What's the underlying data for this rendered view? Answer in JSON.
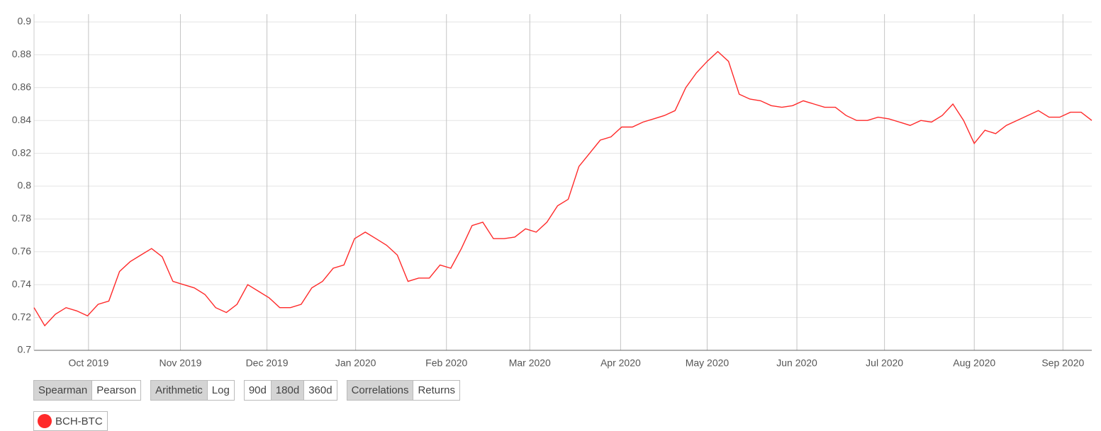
{
  "chart_data": {
    "type": "line",
    "xlim": [
      0,
      99
    ],
    "xticks": [
      {
        "value": 5.1,
        "label": "Oct 2019"
      },
      {
        "value": 13.7,
        "label": "Nov 2019"
      },
      {
        "value": 21.8,
        "label": "Dec 2019"
      },
      {
        "value": 30.1,
        "label": "Jan 2020"
      },
      {
        "value": 38.6,
        "label": "Feb 2020"
      },
      {
        "value": 46.4,
        "label": "Mar 2020"
      },
      {
        "value": 54.9,
        "label": "Apr 2020"
      },
      {
        "value": 63.0,
        "label": "May 2020"
      },
      {
        "value": 71.4,
        "label": "Jun 2020"
      },
      {
        "value": 79.6,
        "label": "Jul 2020"
      },
      {
        "value": 88.0,
        "label": "Aug 2020"
      },
      {
        "value": 96.3,
        "label": "Sep 2020"
      }
    ],
    "ylim": [
      0.7,
      0.9
    ],
    "yticks": [
      0.7,
      0.72,
      0.74,
      0.76,
      0.78,
      0.8,
      0.82,
      0.84,
      0.86,
      0.88,
      0.9
    ],
    "grid": true,
    "series": [
      {
        "name": "BCH-BTC",
        "color": "#ff2a2a",
        "values": [
          0.726,
          0.715,
          0.722,
          0.726,
          0.724,
          0.721,
          0.728,
          0.73,
          0.748,
          0.754,
          0.758,
          0.762,
          0.757,
          0.742,
          0.74,
          0.738,
          0.734,
          0.726,
          0.723,
          0.728,
          0.74,
          0.736,
          0.732,
          0.726,
          0.726,
          0.728,
          0.738,
          0.742,
          0.75,
          0.752,
          0.768,
          0.772,
          0.768,
          0.764,
          0.758,
          0.742,
          0.744,
          0.744,
          0.752,
          0.75,
          0.762,
          0.776,
          0.778,
          0.768,
          0.768,
          0.769,
          0.774,
          0.772,
          0.778,
          0.788,
          0.792,
          0.812,
          0.82,
          0.828,
          0.83,
          0.836,
          0.836,
          0.839,
          0.841,
          0.843,
          0.846,
          0.86,
          0.869,
          0.876,
          0.882,
          0.876,
          0.856,
          0.853,
          0.852,
          0.849,
          0.848,
          0.849,
          0.852,
          0.85,
          0.848,
          0.848,
          0.843,
          0.84,
          0.84,
          0.842,
          0.841,
          0.839,
          0.837,
          0.84,
          0.839,
          0.843,
          0.85,
          0.84,
          0.826,
          0.834,
          0.832,
          0.837,
          0.84,
          0.843,
          0.846,
          0.842,
          0.842,
          0.845,
          0.845,
          0.84
        ]
      }
    ]
  },
  "controls": [
    {
      "options": [
        "Spearman",
        "Pearson"
      ],
      "active": 0
    },
    {
      "options": [
        "Arithmetic",
        "Log"
      ],
      "active": 0
    },
    {
      "options": [
        "90d",
        "180d",
        "360d"
      ],
      "active": 1
    },
    {
      "options": [
        "Correlations",
        "Returns"
      ],
      "active": 0
    }
  ]
}
